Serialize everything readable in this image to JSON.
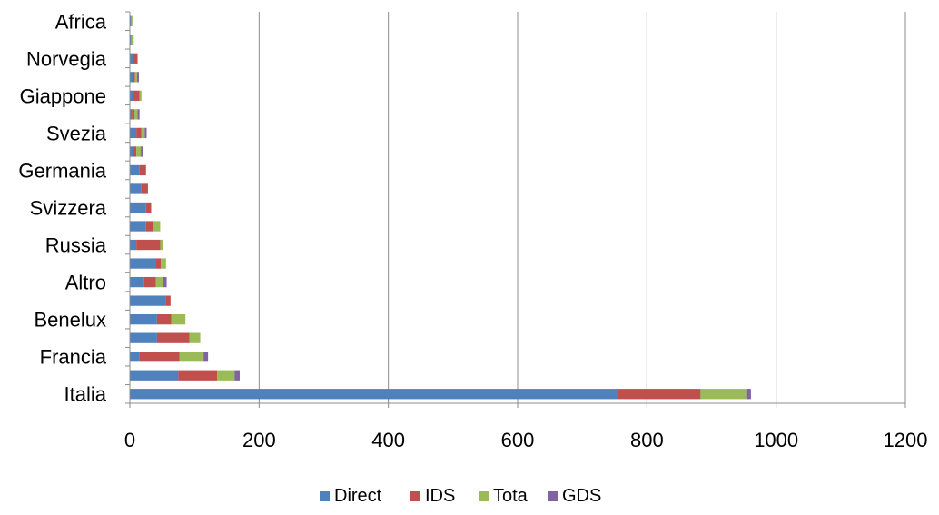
{
  "chart_data": {
    "type": "bar",
    "orientation": "horizontal",
    "stacked": true,
    "categories": [
      "Italia",
      "",
      "Francia",
      "",
      "Benelux",
      "",
      "Altro",
      "",
      "Russia",
      "",
      "Svizzera",
      "",
      "Germania",
      "",
      "Svezia",
      "",
      "Giappone",
      "",
      "Norvegia",
      "",
      "Africa"
    ],
    "series": [
      {
        "name": "Direct",
        "color": "#4f81bd",
        "values": [
          755,
          75,
          15,
          42,
          42,
          55,
          22,
          40,
          10,
          25,
          25,
          18,
          15,
          5,
          10,
          3,
          5,
          5,
          5,
          2,
          2
        ]
      },
      {
        "name": "IDS",
        "color": "#c0504d",
        "values": [
          128,
          60,
          62,
          50,
          22,
          8,
          18,
          8,
          37,
          12,
          8,
          10,
          10,
          5,
          8,
          4,
          10,
          3,
          7,
          0,
          0
        ]
      },
      {
        "name": "Tota",
        "color": "#9bbb59",
        "values": [
          72,
          27,
          37,
          17,
          22,
          0,
          12,
          8,
          5,
          10,
          0,
          0,
          0,
          7,
          5,
          5,
          3,
          3,
          0,
          4,
          2
        ]
      },
      {
        "name": "GDS",
        "color": "#8064a2",
        "values": [
          6,
          8,
          7,
          0,
          0,
          0,
          5,
          0,
          0,
          0,
          0,
          0,
          0,
          3,
          3,
          3,
          0,
          3,
          0,
          0,
          0
        ]
      }
    ],
    "xlim": [
      0,
      1200
    ],
    "x_ticks": [
      0,
      200,
      400,
      600,
      800,
      1000,
      1200
    ],
    "grid": "vertical",
    "legend": "bottom"
  }
}
